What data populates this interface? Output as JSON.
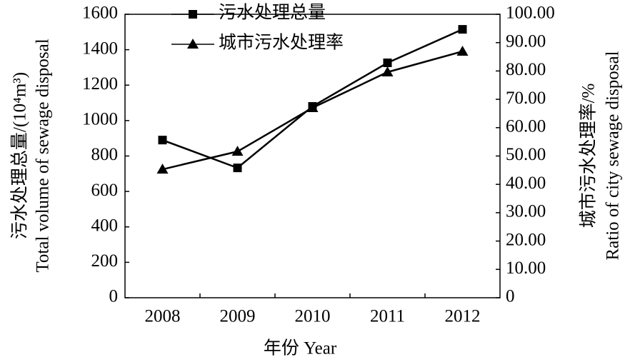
{
  "chart_data": {
    "type": "line",
    "categories": [
      "2008",
      "2009",
      "2010",
      "2011",
      "2012"
    ],
    "x_label": "年份 Year",
    "y_label": [
      "污水处理总量/(10⁴m³)",
      "Total volume of sewage disposal"
    ],
    "y2_label": [
      "城市污水处理率/%",
      "Ratio of city sewage disposal"
    ],
    "series": [
      {
        "name": "污水处理总量",
        "color": "#000000",
        "marker": "square",
        "values": [
          890,
          733,
          1080,
          1326,
          1515
        ]
      },
      {
        "name": "城市污水处理率",
        "color": "#000000",
        "marker": "triangle",
        "axis": "y2",
        "values": [
          45.3,
          51.6,
          67.0,
          79.6,
          86.9
        ]
      }
    ],
    "ylim": [
      0,
      1600
    ],
    "yticks": [
      0,
      200,
      400,
      600,
      800,
      1000,
      1200,
      1400,
      1600
    ],
    "y2lim": [
      0,
      100
    ],
    "y2ticks": [
      0,
      {
        "value": 10,
        "label": "10.00"
      },
      {
        "value": 20,
        "label": "20.00"
      },
      {
        "value": 30,
        "label": "30.00"
      },
      {
        "value": 40,
        "label": "40.00"
      },
      {
        "value": 50,
        "label": "50.00"
      },
      {
        "value": 60,
        "label": "60.00"
      },
      {
        "value": 70,
        "label": "70.00"
      },
      {
        "value": 80,
        "label": "80.00"
      },
      {
        "value": 90,
        "label": "90.00"
      },
      {
        "value": 100,
        "label": "100.00"
      }
    ],
    "grid": false,
    "legend": "top-left"
  }
}
